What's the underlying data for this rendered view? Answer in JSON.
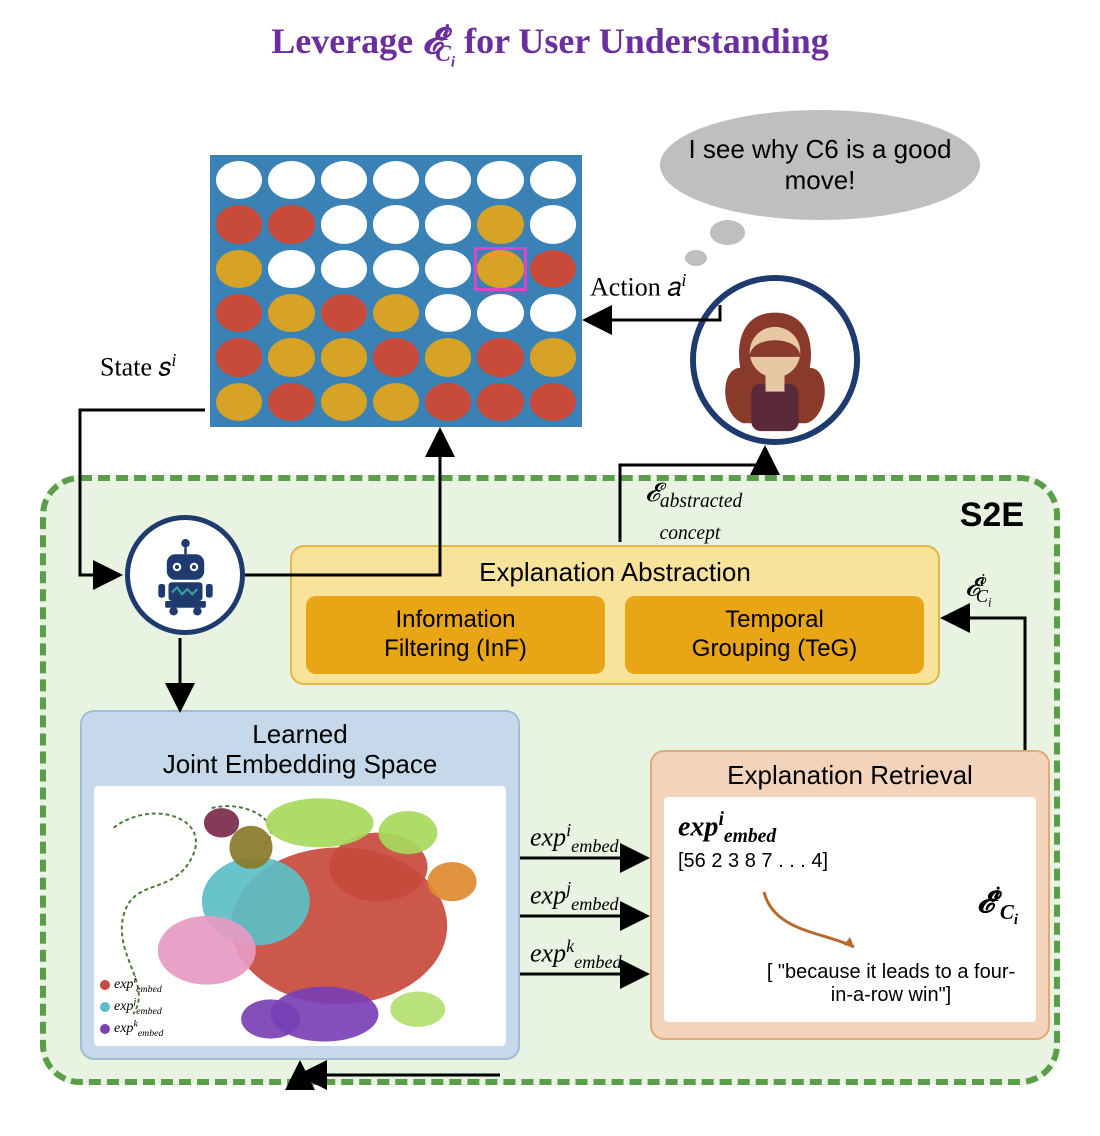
{
  "title": {
    "prefix": "Leverage ",
    "symbol_html": "𝓔",
    "suffix": " for User Understanding",
    "color": "#6b2e9e"
  },
  "thought": {
    "text": "I see why C6 is a good move!"
  },
  "labels": {
    "action": "Action 𝑎",
    "action_sup": "i",
    "state": "State 𝑠",
    "state_sup": "i",
    "eps_abstracted_top": "𝓔",
    "eps_abstracted_sub1": "abstracted",
    "eps_abstracted_sub2": "concept",
    "eps_ci": "𝓔",
    "eps_ci_sup": "i",
    "eps_ci_sub": "C",
    "exp_i": "exp",
    "exp_i_sup": "i",
    "exp_i_sub": "embed",
    "exp_j": "exp",
    "exp_j_sup": "j",
    "exp_j_sub": "embed",
    "exp_k": "exp",
    "exp_k_sup": "k",
    "exp_k_sub": "embed"
  },
  "s2e": {
    "label": "S2E",
    "border_color": "#5a9e4a",
    "bg_color": "#e8f3e1"
  },
  "board": {
    "bg": "#3a82b5",
    "colors": {
      "w": "#ffffff",
      "r": "#c84a3a",
      "y": "#d6a327"
    },
    "highlight": {
      "row": 2,
      "col": 5,
      "color": "#d946c9"
    },
    "grid": [
      [
        "w",
        "w",
        "w",
        "w",
        "w",
        "w",
        "w"
      ],
      [
        "r",
        "r",
        "w",
        "w",
        "w",
        "y",
        "w"
      ],
      [
        "y",
        "w",
        "w",
        "w",
        "w",
        "y",
        "r"
      ],
      [
        "r",
        "y",
        "r",
        "y",
        "w",
        "w",
        "w"
      ],
      [
        "r",
        "y",
        "y",
        "r",
        "y",
        "r",
        "y"
      ],
      [
        "y",
        "r",
        "y",
        "y",
        "r",
        "r",
        "r"
      ]
    ]
  },
  "abstraction": {
    "title": "Explanation Abstraction",
    "box_bg": "#f9e29a",
    "pill_bg": "#e8a617",
    "pill1_l1": "Information",
    "pill1_l2": "Filtering (InF)",
    "pill2_l1": "Temporal",
    "pill2_l2": "Grouping (TeG)"
  },
  "embedding": {
    "title_l1": "Learned",
    "title_l2": "Joint Embedding Space",
    "box_bg": "#c5d9ea",
    "cluster_colors": {
      "red": "#c74a3c",
      "cyan": "#5bbfc6",
      "purple": "#7a3fb5",
      "pink": "#e79ac2",
      "green": "#a7d95b",
      "orange": "#e08a2e",
      "olive": "#8a7a2a",
      "maroon": "#7a2a4a",
      "path": "#4a7a3a"
    },
    "legend": [
      {
        "color": "#c74a3c",
        "label": "exp",
        "sup": "i",
        "sub": "embed"
      },
      {
        "color": "#5bbfc6",
        "label": "exp",
        "sup": "j",
        "sub": "embed"
      },
      {
        "color": "#7a3fb5",
        "label": "exp",
        "sup": "k",
        "sub": "embed"
      }
    ]
  },
  "retrieval": {
    "title": "Explanation Retrieval",
    "box_bg": "#f4d3bb",
    "exp_label": "exp",
    "exp_sup": "i",
    "exp_sub": "embed",
    "vector": "[56 2 3 8 7 . . . 4]",
    "eps_label": "𝓔",
    "eps_sup": "i",
    "eps_sub": "C",
    "eps_sub_sup": "i",
    "result": "[ \"because it leads to a four-in-a-row win\"]",
    "arrow_color": "#b86a2e"
  },
  "person": {
    "hair": "#8a3a2a",
    "skin": "#e8c7a5",
    "top": "#5a2a3a",
    "ring": "#1e3a6e"
  },
  "robot": {
    "body": "#1e3a6e",
    "accent": "#f0f0f0",
    "signal": "#3aa0a0",
    "ring": "#1e3a6e"
  },
  "arrows": {
    "stroke": "#000000",
    "width": 3
  }
}
